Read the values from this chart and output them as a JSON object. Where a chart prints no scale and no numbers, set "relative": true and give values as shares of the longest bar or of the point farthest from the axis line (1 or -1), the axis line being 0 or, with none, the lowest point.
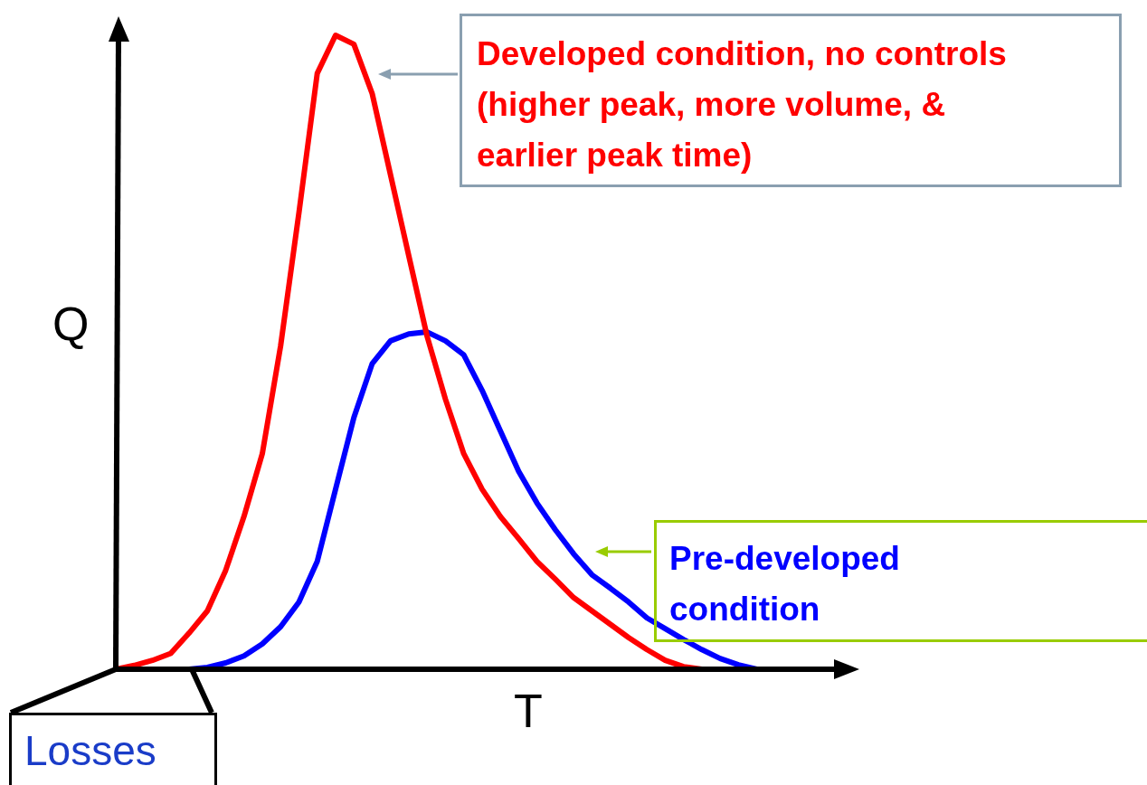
{
  "chart_data": {
    "type": "line",
    "relative": true,
    "xlabel": "T",
    "ylabel": "Q",
    "marker": "none",
    "categories": [
      null,
      null,
      null,
      null,
      null,
      null,
      null,
      null,
      null,
      null,
      null,
      null,
      null,
      null,
      null,
      null,
      null,
      null,
      null,
      null,
      null,
      null,
      null,
      null,
      null,
      null,
      null,
      null,
      null,
      null,
      null,
      null,
      null,
      null,
      null,
      null
    ],
    "series": [
      {
        "name": "Developed condition, no controls (higher peak, more volume, & earlier peak time)",
        "color": "#ff0000",
        "values": [
          0,
          0.006,
          0.014,
          0.025,
          0.057,
          0.092,
          0.156,
          0.241,
          0.34,
          0.51,
          0.72,
          0.94,
          1,
          0.986,
          0.908,
          0.78,
          0.652,
          0.525,
          0.426,
          0.34,
          0.284,
          0.241,
          0.206,
          0.17,
          0.142,
          0.113,
          0.092,
          0.071,
          0.05,
          0.031,
          0.014,
          0.004,
          0,
          null,
          null,
          null
        ]
      },
      {
        "name": "Pre-developed condition",
        "color": "#0000ff",
        "values": [
          null,
          null,
          null,
          null,
          0,
          0.003,
          0.01,
          0.021,
          0.04,
          0.067,
          0.106,
          0.17,
          0.284,
          0.397,
          0.482,
          0.518,
          0.529,
          0.532,
          0.518,
          0.496,
          0.44,
          0.376,
          0.312,
          0.262,
          0.22,
          0.182,
          0.149,
          0.128,
          0.106,
          0.081,
          0.064,
          0.047,
          0.031,
          0.017,
          0.007,
          0
        ]
      }
    ],
    "annotations": [
      "Losses"
    ]
  }
}
